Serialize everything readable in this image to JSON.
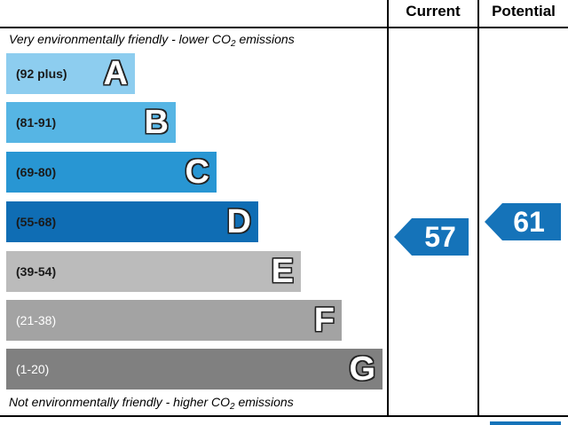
{
  "header": {
    "current_label": "Current",
    "potential_label": "Potential"
  },
  "captions": {
    "top_prefix": "Very environmentally friendly - lower C",
    "top_o": "O",
    "top_sub": "2",
    "top_suffix": " emissions",
    "bottom_prefix": "Not environmentally friendly - higher C",
    "bottom_o": "O",
    "bottom_sub": "2",
    "bottom_suffix": " emissions"
  },
  "bands": [
    {
      "range": "(92 plus)",
      "letter": "A",
      "color": "#8dcdef"
    },
    {
      "range": "(81-91)",
      "letter": "B",
      "color": "#56b5e4"
    },
    {
      "range": "(69-80)",
      "letter": "C",
      "color": "#2896d3"
    },
    {
      "range": "(55-68)",
      "letter": "D",
      "color": "#0f6db4"
    },
    {
      "range": "(39-54)",
      "letter": "E",
      "color": "#bbbbbb"
    },
    {
      "range": "(21-38)",
      "letter": "F",
      "color": "#a3a3a3"
    },
    {
      "range": "(1-20)",
      "letter": "G",
      "color": "#808080"
    }
  ],
  "ratings": {
    "current": "57",
    "potential": "61",
    "arrow_color": "#1573b9"
  }
}
